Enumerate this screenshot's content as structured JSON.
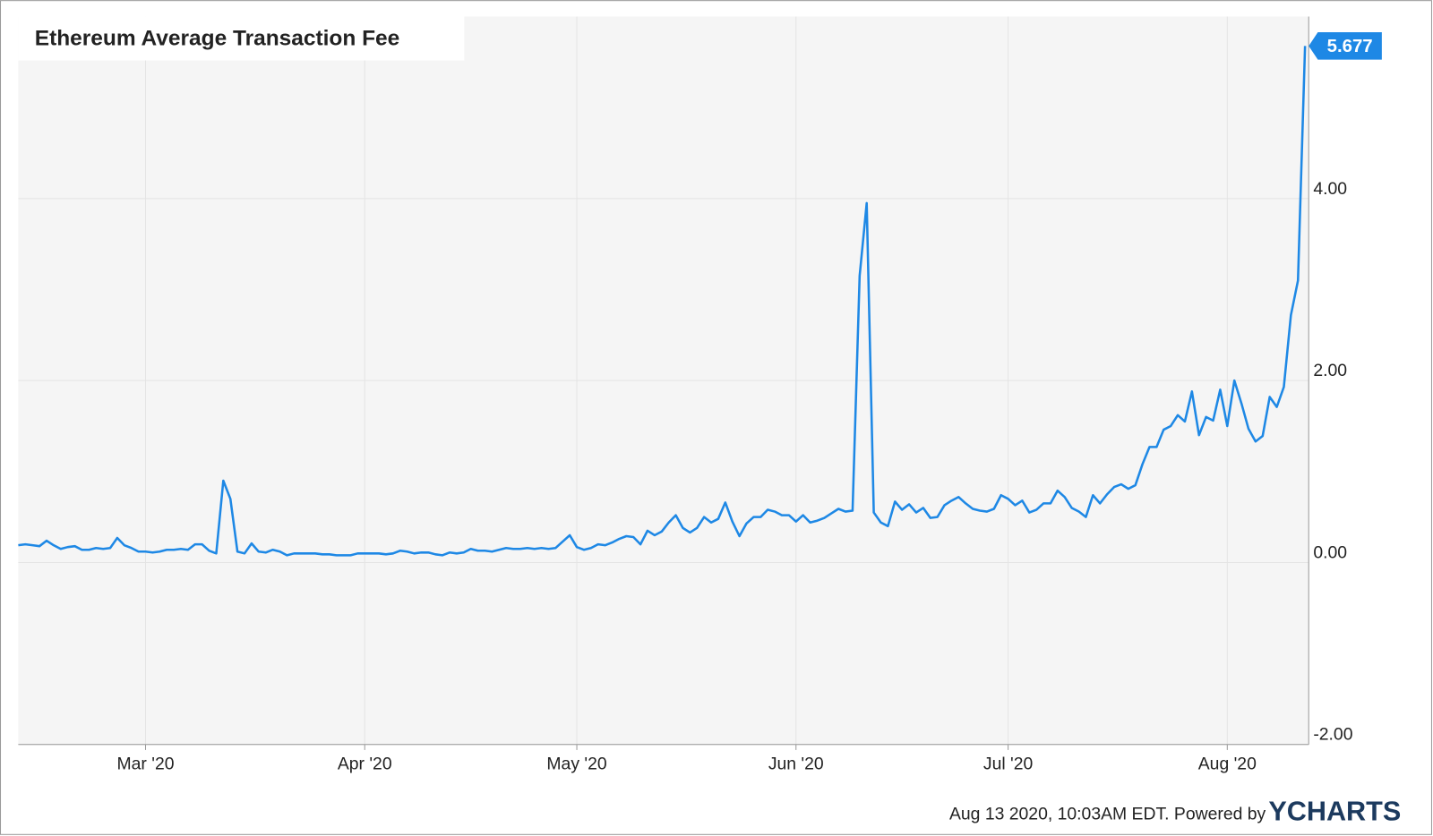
{
  "chart_data": {
    "type": "line",
    "title": "Ethereum Average Transaction Fee",
    "categories": [
      null,
      null,
      null,
      null,
      null,
      null,
      null,
      null,
      null,
      null,
      null,
      null,
      null,
      null,
      null,
      null,
      null,
      null,
      "Mar '20",
      null,
      null,
      null,
      null,
      null,
      null,
      null,
      null,
      null,
      null,
      null,
      null,
      null,
      null,
      null,
      null,
      null,
      null,
      null,
      null,
      null,
      null,
      null,
      null,
      null,
      null,
      null,
      null,
      null,
      null,
      "Apr '20",
      null,
      null,
      null,
      null,
      null,
      null,
      null,
      null,
      null,
      null,
      null,
      null,
      null,
      null,
      null,
      null,
      null,
      null,
      null,
      null,
      null,
      null,
      null,
      null,
      null,
      null,
      null,
      null,
      null,
      "May '20",
      null,
      null,
      null,
      null,
      null,
      null,
      null,
      null,
      null,
      null,
      null,
      null,
      null,
      null,
      null,
      null,
      null,
      null,
      null,
      null,
      null,
      null,
      null,
      null,
      null,
      null,
      null,
      null,
      null,
      null,
      "Jun '20",
      null,
      null,
      null,
      null,
      null,
      null,
      null,
      null,
      null,
      null,
      null,
      null,
      null,
      null,
      null,
      null,
      null,
      null,
      null,
      null,
      null,
      null,
      null,
      null,
      null,
      null,
      null,
      null,
      null,
      "Jul '20",
      null,
      null,
      null,
      null,
      null,
      null,
      null,
      null,
      null,
      null,
      null,
      null,
      null,
      null,
      null,
      null,
      null,
      null,
      null,
      null,
      null,
      null,
      null,
      null,
      null,
      null,
      null,
      null,
      null,
      null,
      "Aug '20",
      null,
      null,
      null,
      null,
      null,
      null,
      null,
      null,
      null,
      null,
      null
    ],
    "series": [
      {
        "color": "#1e88e5",
        "values": [
          0.19,
          0.2,
          0.19,
          0.18,
          0.24,
          0.19,
          0.15,
          0.17,
          0.18,
          0.14,
          0.14,
          0.16,
          0.15,
          0.16,
          0.27,
          0.19,
          0.16,
          0.12,
          0.12,
          0.11,
          0.12,
          0.14,
          0.14,
          0.15,
          0.14,
          0.2,
          0.2,
          0.13,
          0.1,
          0.9,
          0.7,
          0.12,
          0.1,
          0.21,
          0.12,
          0.11,
          0.14,
          0.12,
          0.08,
          0.1,
          0.1,
          0.1,
          0.1,
          0.09,
          0.09,
          0.08,
          0.08,
          0.08,
          0.1,
          0.1,
          0.1,
          0.1,
          0.09,
          0.1,
          0.13,
          0.12,
          0.1,
          0.11,
          0.11,
          0.09,
          0.08,
          0.11,
          0.1,
          0.11,
          0.15,
          0.13,
          0.13,
          0.12,
          0.14,
          0.16,
          0.15,
          0.15,
          0.16,
          0.15,
          0.16,
          0.15,
          0.16,
          0.23,
          0.3,
          0.17,
          0.14,
          0.16,
          0.2,
          0.19,
          0.22,
          0.26,
          0.29,
          0.28,
          0.2,
          0.35,
          0.3,
          0.34,
          0.44,
          0.52,
          0.38,
          0.33,
          0.38,
          0.5,
          0.44,
          0.48,
          0.66,
          0.45,
          0.29,
          0.43,
          0.5,
          0.5,
          0.58,
          0.56,
          0.52,
          0.52,
          0.45,
          0.52,
          0.44,
          0.46,
          0.49,
          0.54,
          0.59,
          0.56,
          0.57,
          3.15,
          3.95,
          0.55,
          0.44,
          0.4,
          0.67,
          0.58,
          0.64,
          0.55,
          0.6,
          0.49,
          0.5,
          0.63,
          0.68,
          0.72,
          0.65,
          0.59,
          0.57,
          0.56,
          0.59,
          0.74,
          0.7,
          0.63,
          0.68,
          0.55,
          0.58,
          0.65,
          0.65,
          0.79,
          0.72,
          0.6,
          0.56,
          0.5,
          0.74,
          0.65,
          0.75,
          0.83,
          0.86,
          0.81,
          0.85,
          1.08,
          1.27,
          1.27,
          1.46,
          1.5,
          1.62,
          1.55,
          1.88,
          1.4,
          1.6,
          1.56,
          1.9,
          1.5,
          2.0,
          1.75,
          1.47,
          1.33,
          1.39,
          1.82,
          1.71,
          1.93,
          2.72,
          3.1,
          5.677
        ]
      }
    ],
    "ylim": [
      -2,
      6
    ],
    "yticks": [
      {
        "value": -2,
        "label": "-2.00"
      },
      {
        "value": 0,
        "label": "0.00"
      },
      {
        "value": 2,
        "label": "2.00"
      },
      {
        "value": 4,
        "label": "4.00"
      }
    ],
    "grid": true,
    "source": "Aug 13 2020, 10:03AM EDT. Powered by",
    "brand": "YCHARTS"
  }
}
